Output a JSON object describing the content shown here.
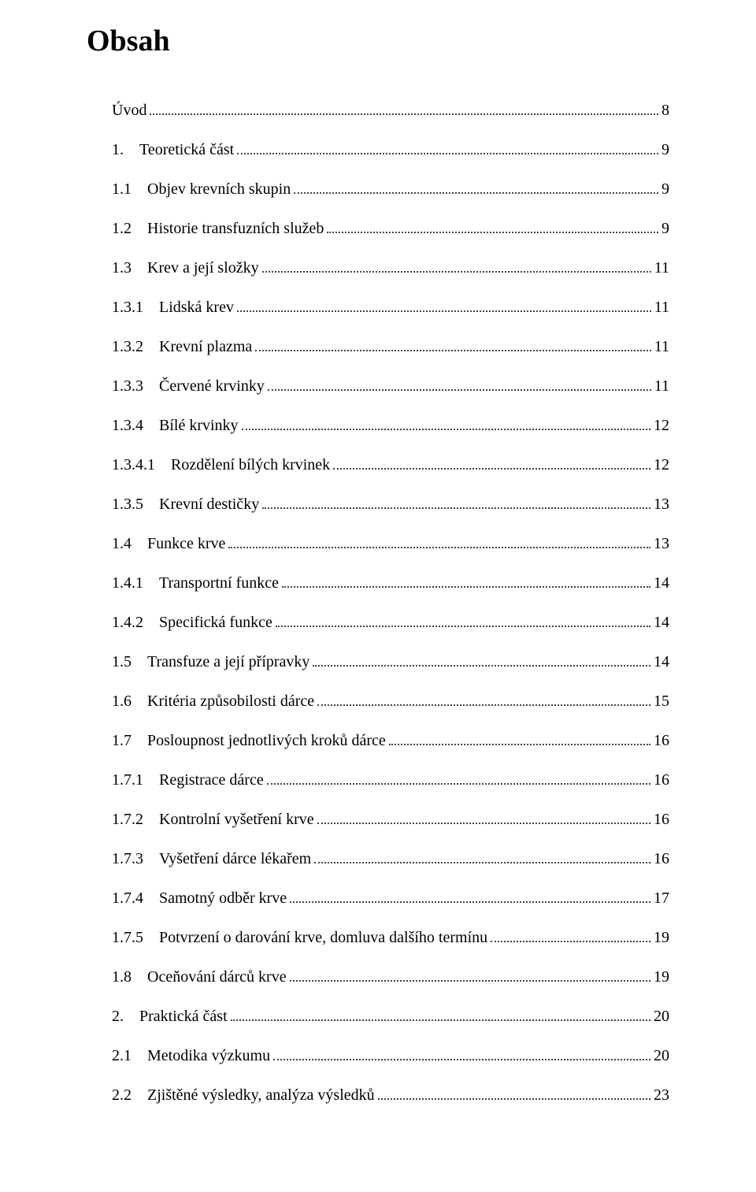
{
  "title": "Obsah",
  "typography": {
    "font_family": "Times New Roman",
    "title_fontsize": 38,
    "body_fontsize": 20,
    "title_weight": "bold",
    "text_color": "#000000",
    "background": "#ffffff",
    "dot_color": "#444444"
  },
  "entries": [
    {
      "num": "",
      "text": "Úvod",
      "page": "8"
    },
    {
      "num": "1.",
      "text": "Teoretická část",
      "page": "9"
    },
    {
      "num": "1.1",
      "text": "Objev krevních skupin",
      "page": "9"
    },
    {
      "num": "1.2",
      "text": "Historie transfuzních služeb",
      "page": "9"
    },
    {
      "num": "1.3",
      "text": "Krev a její složky",
      "page": "11"
    },
    {
      "num": "1.3.1",
      "text": "Lidská krev",
      "page": "11"
    },
    {
      "num": "1.3.2",
      "text": "Krevní plazma",
      "page": "11"
    },
    {
      "num": "1.3.3",
      "text": "Červené krvinky",
      "page": "11"
    },
    {
      "num": "1.3.4",
      "text": "Bílé krvinky",
      "page": "12"
    },
    {
      "num": "1.3.4.1",
      "text": "Rozdělení bílých krvinek",
      "page": "12"
    },
    {
      "num": "1.3.5",
      "text": "Krevní destičky",
      "page": "13"
    },
    {
      "num": "1.4",
      "text": "Funkce krve",
      "page": "13"
    },
    {
      "num": "1.4.1",
      "text": "Transportní funkce",
      "page": "14"
    },
    {
      "num": "1.4.2",
      "text": "Specifická funkce",
      "page": "14"
    },
    {
      "num": "1.5",
      "text": "Transfuze a její přípravky",
      "page": "14"
    },
    {
      "num": "1.6",
      "text": "Kritéria způsobilosti dárce",
      "page": "15"
    },
    {
      "num": "1.7",
      "text": "Posloupnost jednotlivých kroků dárce",
      "page": "16"
    },
    {
      "num": "1.7.1",
      "text": "Registrace dárce",
      "page": "16"
    },
    {
      "num": "1.7.2",
      "text": "Kontrolní vyšetření krve",
      "page": "16"
    },
    {
      "num": "1.7.3",
      "text": "Vyšetření dárce lékařem",
      "page": "16"
    },
    {
      "num": "1.7.4",
      "text": "Samotný odběr krve",
      "page": "17"
    },
    {
      "num": "1.7.5",
      "text": "Potvrzení o darování krve, domluva dalšího termínu",
      "page": "19"
    },
    {
      "num": "1.8",
      "text": "Oceňování dárců krve",
      "page": "19"
    },
    {
      "num": "2.",
      "text": "Praktická část",
      "page": "20"
    },
    {
      "num": "2.1",
      "text": "Metodika výzkumu",
      "page": "20"
    },
    {
      "num": "2.2",
      "text": "Zjištěné výsledky, analýza výsledků",
      "page": "23"
    }
  ]
}
